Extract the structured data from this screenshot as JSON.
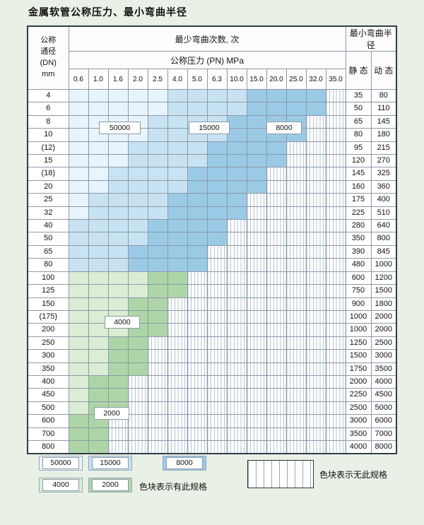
{
  "title": "金属软管公称压力、最小弯曲半径",
  "table": {
    "headers": {
      "dn_lines": [
        "公称",
        "通径",
        "(DN)",
        "mm"
      ],
      "bend_cycles": "最少弯曲次数, 次",
      "pressure": "公称压力 (PN) MPa",
      "radius": "最小弯曲半径",
      "static": "静 态",
      "dynamic": "动 态"
    },
    "pressure_columns": [
      "0.6",
      "1.0",
      "1.6",
      "2.0",
      "2.5",
      "4.0",
      "5.0",
      "6.3",
      "10.0",
      "15.0",
      "20.0",
      "25.0",
      "32.0",
      "35.0"
    ],
    "rows": [
      {
        "dn": "4",
        "cells": "aaaaabbbbccccx",
        "static": "35",
        "dynamic": "80"
      },
      {
        "dn": "6",
        "cells": "aaaaabbbbccccx",
        "static": "50",
        "dynamic": "110"
      },
      {
        "dn": "8",
        "cells": "aaaabbbbccccxx",
        "static": "65",
        "dynamic": "145"
      },
      {
        "dn": "10",
        "cells": "aaaabbbbccccxx",
        "static": "80",
        "dynamic": "180"
      },
      {
        "dn": "(12)",
        "cells": "aaabbbbccccxxx",
        "static": "95",
        "dynamic": "215"
      },
      {
        "dn": "15",
        "cells": "aaabbbbccccxxx",
        "static": "120",
        "dynamic": "270"
      },
      {
        "dn": "(18)",
        "cells": "aabbbbccccxxxx",
        "static": "145",
        "dynamic": "325"
      },
      {
        "dn": "20",
        "cells": "aabbbbccccxxxx",
        "static": "160",
        "dynamic": "360"
      },
      {
        "dn": "25",
        "cells": "abbbbccccxxxxx",
        "static": "175",
        "dynamic": "400"
      },
      {
        "dn": "32",
        "cells": "abbbbccccxxxxx",
        "static": "225",
        "dynamic": "510"
      },
      {
        "dn": "40",
        "cells": "bbbbccccxxxxxx",
        "static": "280",
        "dynamic": "640"
      },
      {
        "dn": "50",
        "cells": "bbbbccccxxxxxx",
        "static": "350",
        "dynamic": "800"
      },
      {
        "dn": "65",
        "cells": "bbbccccxxxxxxx",
        "static": "390",
        "dynamic": "845"
      },
      {
        "dn": "80",
        "cells": "bbbccccxxxxxxx",
        "static": "480",
        "dynamic": "1000"
      },
      {
        "dn": "100",
        "cells": "ddddeexxxxxxxx",
        "static": "600",
        "dynamic": "1200"
      },
      {
        "dn": "125",
        "cells": "ddddeexxxxxxxx",
        "static": "750",
        "dynamic": "1500"
      },
      {
        "dn": "150",
        "cells": "dddeexxxxxxxxx",
        "static": "900",
        "dynamic": "1800"
      },
      {
        "dn": "(175)",
        "cells": "dddeexxxxxxxxx",
        "static": "1000",
        "dynamic": "2000"
      },
      {
        "dn": "200",
        "cells": "dddeexxxxxxxxx",
        "static": "1000",
        "dynamic": "2000"
      },
      {
        "dn": "250",
        "cells": "ddeexxxxxxxxxx",
        "static": "1250",
        "dynamic": "2500"
      },
      {
        "dn": "300",
        "cells": "ddeexxxxxxxxxx",
        "static": "1500",
        "dynamic": "3000"
      },
      {
        "dn": "350",
        "cells": "ddeexxxxxxxxxx",
        "static": "1750",
        "dynamic": "3500"
      },
      {
        "dn": "400",
        "cells": "deexxxxxxxxxxx",
        "static": "2000",
        "dynamic": "4000"
      },
      {
        "dn": "450",
        "cells": "deexxxxxxxxxxx",
        "static": "2250",
        "dynamic": "4500"
      },
      {
        "dn": "500",
        "cells": "deexxxxxxxxxxx",
        "static": "2500",
        "dynamic": "5000"
      },
      {
        "dn": "600",
        "cells": "eexxxxxxxxxxxx",
        "static": "3000",
        "dynamic": "6000"
      },
      {
        "dn": "700",
        "cells": "eexxxxxxxxxxxx",
        "static": "3500",
        "dynamic": "7000"
      },
      {
        "dn": "800",
        "cells": "eexxxxxxxxxxxx",
        "static": "4000",
        "dynamic": "8000"
      }
    ]
  },
  "categories": {
    "a": {
      "cycles": "50000",
      "color": "#e8f4fb"
    },
    "b": {
      "cycles": "15000",
      "color": "#c7e3f3"
    },
    "c": {
      "cycles": "8000",
      "color": "#9bcae6"
    },
    "d": {
      "cycles": "4000",
      "color": "#dcedd6"
    },
    "e": {
      "cycles": "2000",
      "color": "#aed5a8"
    }
  },
  "region_labels": [
    "50000",
    "15000",
    "8000",
    "4000",
    "2000"
  ],
  "legend": {
    "items": [
      "50000",
      "15000",
      "8000",
      "4000",
      "2000"
    ],
    "has_spec_text": "色块表示有此规格",
    "no_spec_text": "色块表示无此规格"
  }
}
